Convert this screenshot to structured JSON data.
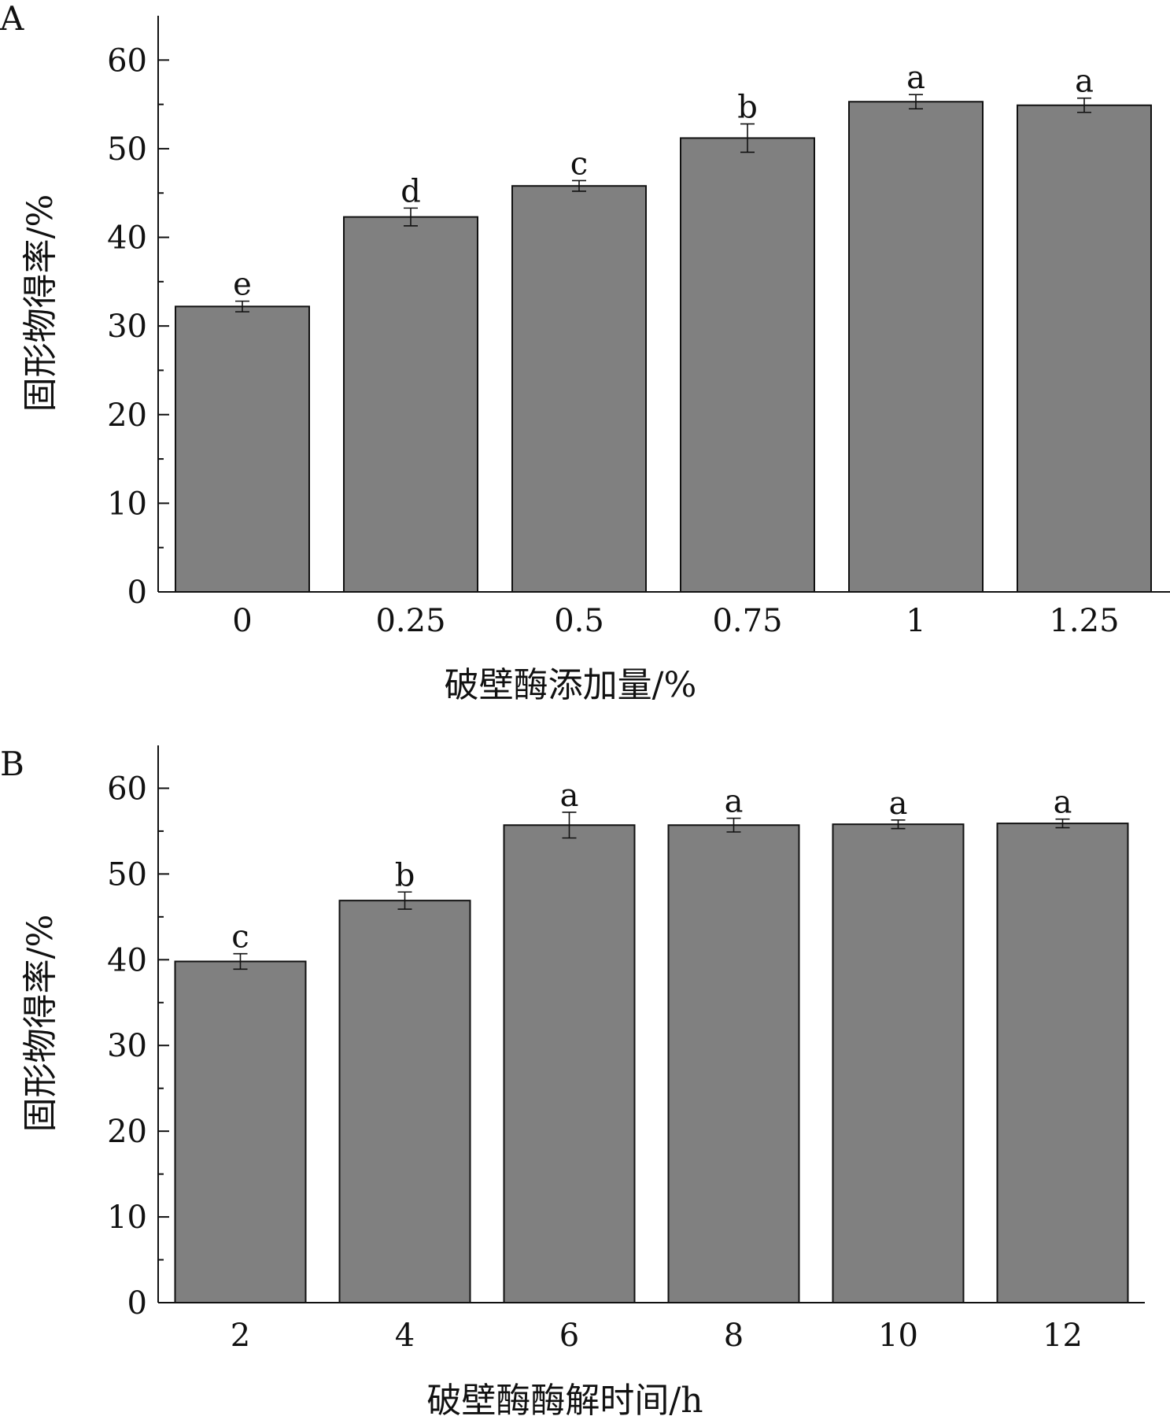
{
  "chart_data": [
    {
      "type": "bar",
      "panel_label": "A",
      "categories": [
        "0",
        "0.25",
        "0.5",
        "0.75",
        "1",
        "1.25"
      ],
      "values": [
        32.2,
        42.3,
        45.8,
        51.2,
        55.3,
        54.9
      ],
      "errors": [
        0.6,
        1.0,
        0.6,
        1.6,
        0.8,
        0.8
      ],
      "significance": [
        "e",
        "d",
        "c",
        "b",
        "a",
        "a"
      ],
      "xlabel": "破壁酶添加量/%",
      "ylabel": "固形物得率/%",
      "ylim": [
        0,
        65
      ],
      "yticks": [
        "0",
        "10",
        "20",
        "30",
        "40",
        "50",
        "60"
      ],
      "bar_color": "#808080",
      "grid": false
    },
    {
      "type": "bar",
      "panel_label": "B",
      "categories": [
        "2",
        "4",
        "6",
        "8",
        "10",
        "12"
      ],
      "values": [
        39.8,
        46.9,
        55.7,
        55.7,
        55.8,
        55.9
      ],
      "errors": [
        0.9,
        1.0,
        1.5,
        0.8,
        0.5,
        0.5
      ],
      "significance": [
        "c",
        "b",
        "a",
        "a",
        "a",
        "a"
      ],
      "xlabel": "破壁酶酶解时间/h",
      "ylabel": "固形物得率/%",
      "ylim": [
        0,
        65
      ],
      "yticks": [
        "0",
        "10",
        "20",
        "30",
        "40",
        "50",
        "60"
      ],
      "bar_color": "#808080",
      "grid": false
    }
  ]
}
